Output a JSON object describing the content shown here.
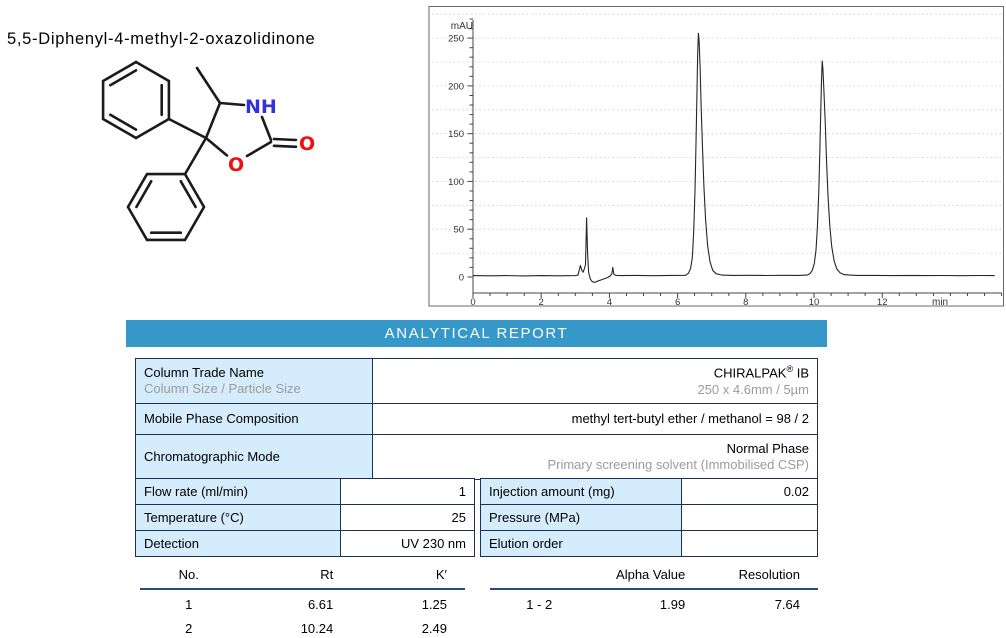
{
  "molecule": {
    "title": "5,5-Diphenyl-4-methyl-2-oxazolidinone",
    "atom_labels": {
      "nh": "NH",
      "ring_o": "O",
      "carbonyl_o": "O"
    },
    "colors": {
      "nitrogen": "#3232dd",
      "oxygen": "#ee1010",
      "bond": "#1b1b1b"
    }
  },
  "chart_data": {
    "type": "line",
    "title": "HPLC chromatogram",
    "ylabel": "mAU",
    "xlabel": "min",
    "yticks": [
      0,
      50,
      100,
      150,
      200,
      250
    ],
    "xticks": [
      0,
      2,
      4,
      6,
      8,
      10,
      12
    ],
    "ylim": [
      -15,
      285
    ],
    "xlim": [
      0,
      15.5
    ],
    "grid": "dotted-horizontal",
    "legend": "none",
    "peaks": [
      {
        "no": 1,
        "rt_min": 6.61,
        "height_mau": 255
      },
      {
        "no": 2,
        "rt_min": 10.24,
        "height_mau": 226
      }
    ],
    "trace": [
      [
        0,
        1.5
      ],
      [
        0.5,
        1.3
      ],
      [
        1,
        1.5
      ],
      [
        1.5,
        1.2
      ],
      [
        2,
        1.5
      ],
      [
        2.5,
        1.3
      ],
      [
        3.0,
        1.5
      ],
      [
        3.08,
        2
      ],
      [
        3.12,
        8
      ],
      [
        3.15,
        12
      ],
      [
        3.19,
        7
      ],
      [
        3.23,
        5
      ],
      [
        3.27,
        9
      ],
      [
        3.3,
        13
      ],
      [
        3.33,
        62
      ],
      [
        3.36,
        25
      ],
      [
        3.39,
        5
      ],
      [
        3.44,
        -2
      ],
      [
        3.5,
        -5
      ],
      [
        3.58,
        -5.5
      ],
      [
        3.68,
        -4
      ],
      [
        3.8,
        -2.5
      ],
      [
        3.95,
        -0.5
      ],
      [
        4.02,
        1
      ],
      [
        4.07,
        3
      ],
      [
        4.1,
        10
      ],
      [
        4.13,
        3
      ],
      [
        4.18,
        1.8
      ],
      [
        4.3,
        1.5
      ],
      [
        4.8,
        1.7
      ],
      [
        5.3,
        1.4
      ],
      [
        5.8,
        1.7
      ],
      [
        6.2,
        1.8
      ],
      [
        6.25,
        2
      ],
      [
        6.32,
        4
      ],
      [
        6.38,
        9
      ],
      [
        6.43,
        20
      ],
      [
        6.47,
        45
      ],
      [
        6.51,
        90
      ],
      [
        6.54,
        140
      ],
      [
        6.57,
        195
      ],
      [
        6.59,
        235
      ],
      [
        6.61,
        255
      ],
      [
        6.63,
        247
      ],
      [
        6.66,
        220
      ],
      [
        6.69,
        180
      ],
      [
        6.73,
        135
      ],
      [
        6.77,
        95
      ],
      [
        6.82,
        60
      ],
      [
        6.88,
        33
      ],
      [
        6.95,
        16
      ],
      [
        7.03,
        7
      ],
      [
        7.13,
        3.5
      ],
      [
        7.3,
        2
      ],
      [
        7.6,
        1.7
      ],
      [
        8.1,
        1.8
      ],
      [
        8.6,
        1.6
      ],
      [
        9.1,
        1.8
      ],
      [
        9.5,
        1.7
      ],
      [
        9.8,
        2
      ],
      [
        9.88,
        3.5
      ],
      [
        9.95,
        7
      ],
      [
        10.01,
        14
      ],
      [
        10.06,
        28
      ],
      [
        10.1,
        52
      ],
      [
        10.14,
        90
      ],
      [
        10.17,
        130
      ],
      [
        10.2,
        175
      ],
      [
        10.22,
        205
      ],
      [
        10.24,
        226
      ],
      [
        10.26,
        218
      ],
      [
        10.29,
        195
      ],
      [
        10.33,
        160
      ],
      [
        10.37,
        120
      ],
      [
        10.41,
        85
      ],
      [
        10.46,
        55
      ],
      [
        10.52,
        32
      ],
      [
        10.59,
        17
      ],
      [
        10.67,
        8.5
      ],
      [
        10.76,
        4.5
      ],
      [
        10.88,
        2.5
      ],
      [
        11.05,
        2
      ],
      [
        11.3,
        1.7
      ],
      [
        11.8,
        1.7
      ],
      [
        12.3,
        1.5
      ],
      [
        12.8,
        1.7
      ],
      [
        13.3,
        1.5
      ],
      [
        13.8,
        1.6
      ],
      [
        14.3,
        1.4
      ],
      [
        14.8,
        1.6
      ],
      [
        15.3,
        1.5
      ]
    ]
  },
  "report": {
    "header": "ANALYTICAL REPORT",
    "colors": {
      "header_bg": "#3598c8",
      "header_text": "#ffffff",
      "cell_bg": "#d4ecfb",
      "border": "#1a3055",
      "muted": "#9b9b9b",
      "rule": "#2a4a86"
    },
    "table1": {
      "rows": [
        {
          "label": "Column Trade Name",
          "sublabel": "Column Size / Particle Size",
          "value": "CHIRALPAK",
          "value_sup": "®",
          "value_suffix": " IB",
          "subvalue": "250 x 4.6mm / 5µm"
        },
        {
          "label": "Mobile Phase Composition",
          "value": "methyl tert-butyl ether / methanol = 98 / 2"
        },
        {
          "label": "Chromatographic Mode",
          "value": "Normal Phase",
          "subvalue": "Primary screening solvent (Immobilised CSP)"
        }
      ]
    },
    "table2": {
      "left": [
        {
          "label": "Flow rate (ml/min)",
          "value": "1"
        },
        {
          "label": "Temperature (°C)",
          "value": "25"
        },
        {
          "label": "Detection",
          "value": "UV 230 nm"
        }
      ],
      "right": [
        {
          "label": "Injection amount (mg)",
          "value": "0.02"
        },
        {
          "label": "Pressure (MPa)",
          "value": ""
        },
        {
          "label": "Elution order",
          "value": ""
        }
      ]
    },
    "results": {
      "left": {
        "headers": [
          "No.",
          "Rt",
          "K′"
        ],
        "rows": [
          [
            "1",
            "6.61",
            "1.25"
          ],
          [
            "2",
            "10.24",
            "2.49"
          ]
        ]
      },
      "right": {
        "headers": [
          "",
          "Alpha Value",
          "Resolution"
        ],
        "rows": [
          [
            "1 - 2",
            "1.99",
            "7.64"
          ]
        ]
      }
    }
  }
}
